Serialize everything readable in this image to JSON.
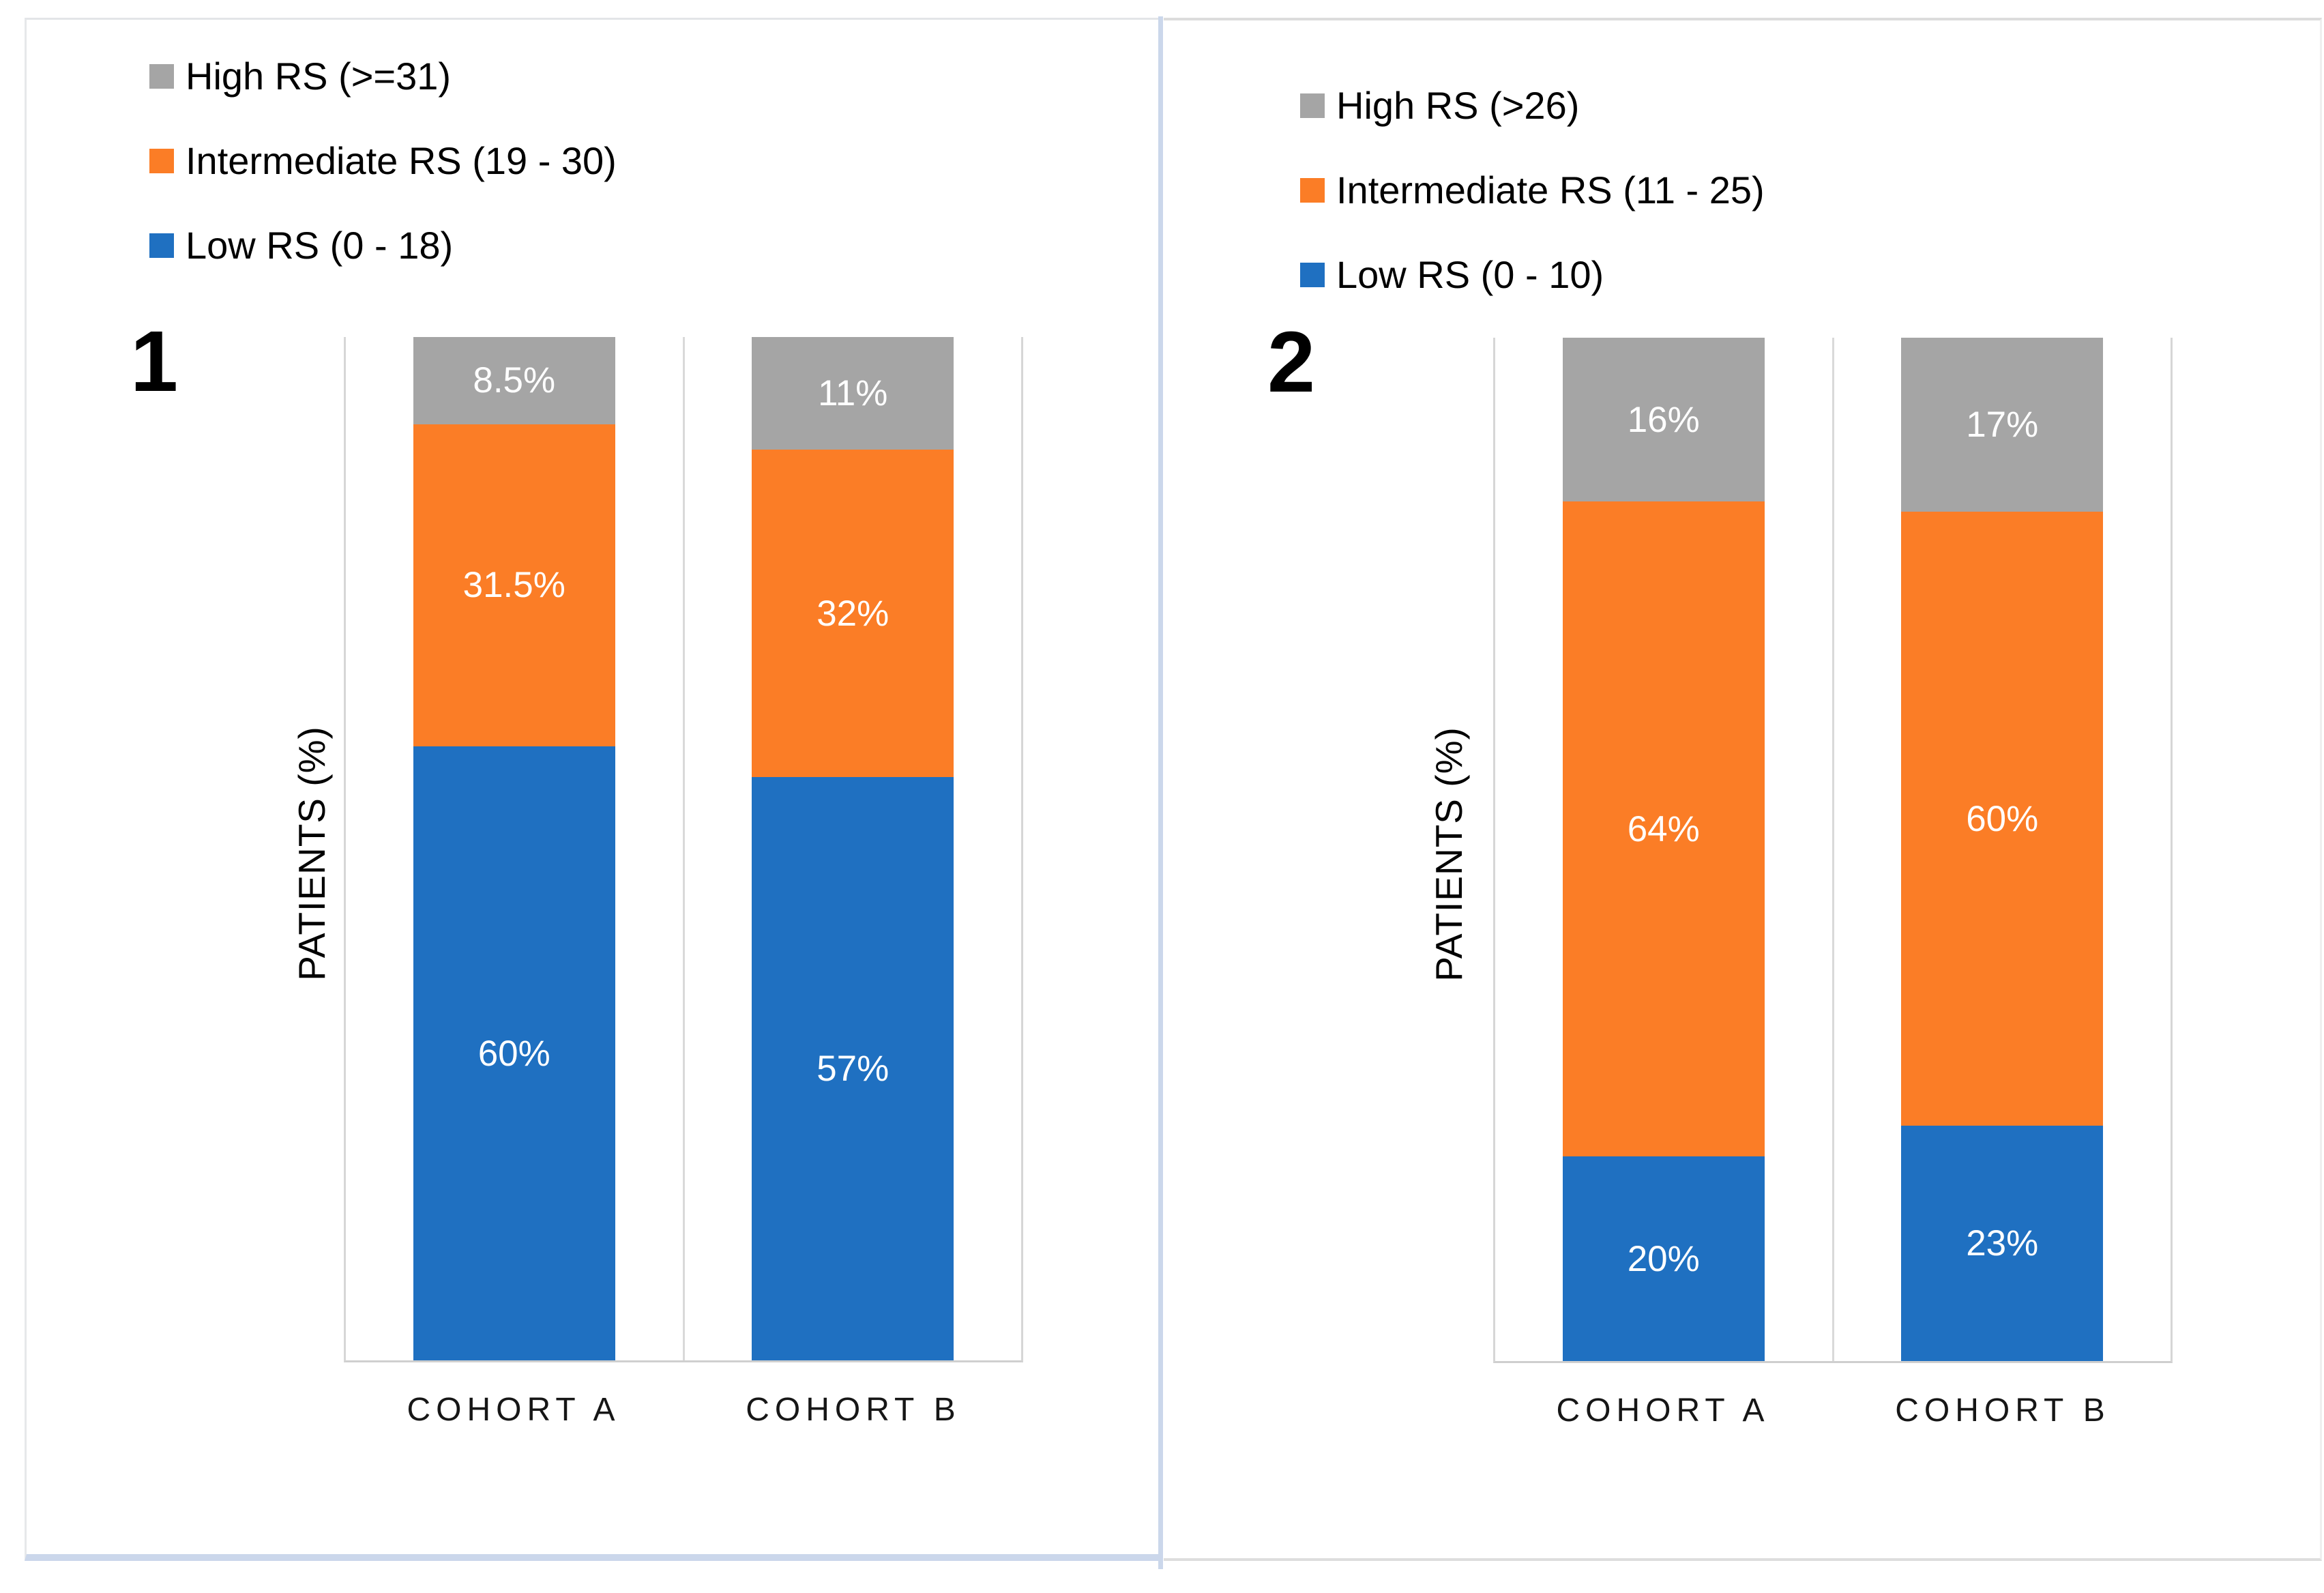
{
  "figure": {
    "background": "#FFFFFF",
    "panel_divider_color": "#CBD7EB",
    "axis_line_color": "#D9D9D9"
  },
  "chart_data": [
    {
      "type": "bar",
      "stacking": "percent-100-stacked",
      "panel_label": "1",
      "title": "",
      "xlabel": "",
      "ylabel": "PATIENTS (%)",
      "ylim": [
        0,
        100
      ],
      "grid": false,
      "legend_position": "top-left",
      "categories": [
        "COHORT A",
        "COHORT B"
      ],
      "legend": [
        {
          "label": "High RS (>=31)",
          "color": "#A5A5A5"
        },
        {
          "label": "Intermediate RS (19 - 30)",
          "color": "#FB7D26"
        },
        {
          "label": "Low RS (0 - 18)",
          "color": "#1F70C1"
        }
      ],
      "series": [
        {
          "name": "High RS (>=31)",
          "color": "#A5A5A5",
          "values": [
            8.5,
            11
          ],
          "data_labels": [
            "8.5%",
            "11%"
          ]
        },
        {
          "name": "Intermediate RS (19 - 30)",
          "color": "#FB7D26",
          "values": [
            31.5,
            32
          ],
          "data_labels": [
            "31.5%",
            "32%"
          ]
        },
        {
          "name": "Low RS (0 - 18)",
          "color": "#1F70C1",
          "values": [
            60,
            57
          ],
          "data_labels": [
            "60%",
            "57%"
          ]
        }
      ],
      "series_order_note": "series listed top-to-bottom as drawn in each stacked bar"
    },
    {
      "type": "bar",
      "stacking": "percent-100-stacked",
      "panel_label": "2",
      "title": "",
      "xlabel": "",
      "ylabel": "PATIENTS (%)",
      "ylim": [
        0,
        100
      ],
      "grid": false,
      "legend_position": "top-left",
      "categories": [
        "COHORT A",
        "COHORT B"
      ],
      "legend": [
        {
          "label": "High RS (>26)",
          "color": "#A5A5A5"
        },
        {
          "label": "Intermediate RS (11 - 25)",
          "color": "#FB7D26"
        },
        {
          "label": "Low RS (0 - 10)",
          "color": "#1F70C1"
        }
      ],
      "series": [
        {
          "name": "High RS (>26)",
          "color": "#A5A5A5",
          "values": [
            16,
            17
          ],
          "data_labels": [
            "16%",
            "17%"
          ]
        },
        {
          "name": "Intermediate RS (11 - 25)",
          "color": "#FB7D26",
          "values": [
            64,
            60
          ],
          "data_labels": [
            "64%",
            "60%"
          ]
        },
        {
          "name": "Low RS (0 - 10)",
          "color": "#1F70C1",
          "values": [
            20,
            23
          ],
          "data_labels": [
            "20%",
            "23%"
          ]
        }
      ],
      "series_order_note": "series listed top-to-bottom as drawn in each stacked bar"
    }
  ]
}
